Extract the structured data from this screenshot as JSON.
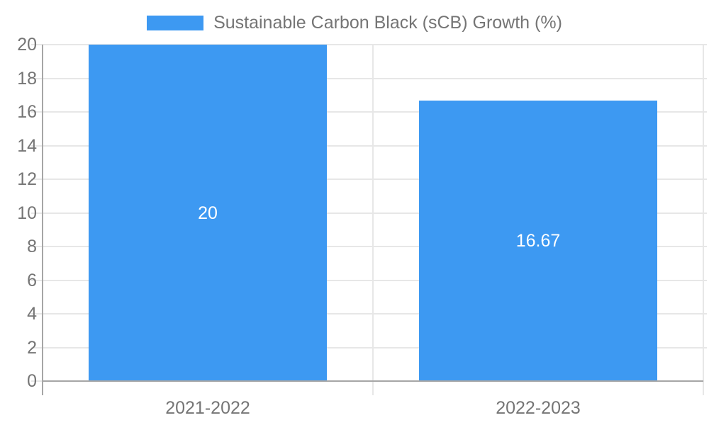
{
  "chart_data": {
    "type": "bar",
    "title": "Sustainable Carbon Black (sCB) Growth (%)",
    "series_name": "Sustainable Carbon Black (sCB) Growth (%)",
    "categories": [
      "2021-2022",
      "2022-2023"
    ],
    "values": [
      20,
      16.67
    ],
    "value_labels": [
      "20",
      "16.67"
    ],
    "xlabel": "",
    "ylabel": "",
    "ylim": [
      0,
      20
    ],
    "ytick_step": 2,
    "yticks": [
      0,
      2,
      4,
      6,
      8,
      10,
      12,
      14,
      16,
      18,
      20
    ],
    "grid": "horizontal",
    "legend_position": "top",
    "value_label_position": "center-of-bar",
    "colors": {
      "bar": "#3d99f2",
      "value_label_text": "#ffffff",
      "axis_line": "#a6a6a6",
      "gridline": "#e7e7e7",
      "tick_text": "#757575",
      "legend_text": "#757575",
      "background": "#ffffff"
    }
  }
}
